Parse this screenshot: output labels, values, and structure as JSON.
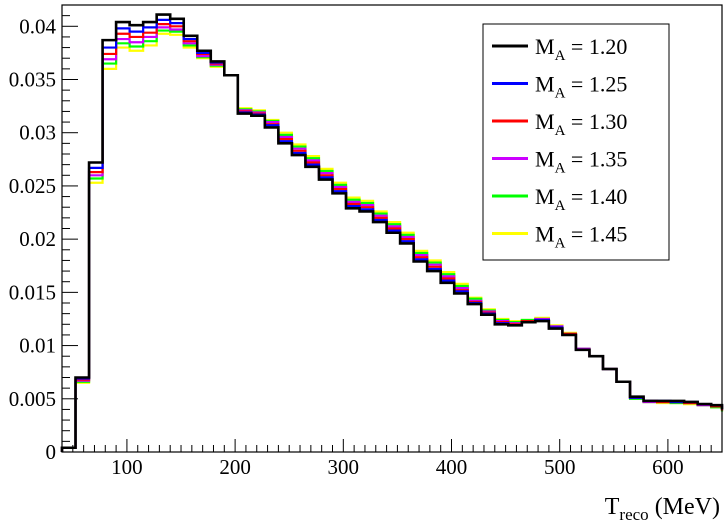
{
  "chart_data": {
    "type": "line",
    "style": "step-histogram",
    "title": "",
    "xlabel": "T",
    "xlabel_subscript": "reco",
    "xlabel_unit": " (MeV)",
    "ylabel": "",
    "xlim": [
      40,
      650
    ],
    "ylim": [
      0,
      0.042
    ],
    "x_ticks": [
      100,
      200,
      300,
      400,
      500,
      600
    ],
    "x_tick_labels": [
      "100",
      "200",
      "300",
      "400",
      "500",
      "600"
    ],
    "y_ticks": [
      0,
      0.005,
      0.01,
      0.015,
      0.02,
      0.025,
      0.03,
      0.035,
      0.04
    ],
    "y_tick_labels": [
      "0",
      "0.005",
      "0.01",
      "0.015",
      "0.02",
      "0.025",
      "0.03",
      "0.035",
      "0.04"
    ],
    "grid": false,
    "legend_position": "top-right",
    "bin_edges": [
      40,
      52.5,
      65,
      77.5,
      90,
      102.5,
      115,
      127.5,
      140,
      152.5,
      165,
      177.5,
      190,
      202.5,
      215,
      227.5,
      240,
      252.5,
      265,
      277.5,
      290,
      302.5,
      315,
      327.5,
      340,
      352.5,
      365,
      377.5,
      390,
      402.5,
      415,
      427.5,
      440,
      452.5,
      465,
      477.5,
      490,
      502.5,
      515,
      527.5,
      540,
      552.5,
      565,
      577.5,
      590,
      602.5,
      615,
      627.5,
      640,
      650
    ],
    "series": [
      {
        "label_main": "M",
        "label_sub": "A",
        "label_value": " = 1.20",
        "color": "#000000",
        "values": [
          0.0004,
          0.007,
          0.0272,
          0.0387,
          0.0404,
          0.0401,
          0.0404,
          0.0411,
          0.0407,
          0.0391,
          0.0377,
          0.0367,
          0.0354,
          0.0318,
          0.0316,
          0.0305,
          0.029,
          0.0279,
          0.0268,
          0.0256,
          0.0243,
          0.0229,
          0.0226,
          0.0216,
          0.0206,
          0.0196,
          0.0179,
          0.017,
          0.0159,
          0.0149,
          0.0139,
          0.0129,
          0.012,
          0.0119,
          0.0122,
          0.0123,
          0.0116,
          0.011,
          0.0096,
          0.009,
          0.0078,
          0.0066,
          0.0052,
          0.0048,
          0.0048,
          0.0048,
          0.0047,
          0.0045,
          0.0044,
          0.004
        ]
      },
      {
        "label_main": "M",
        "label_sub": "A",
        "label_value": " = 1.25",
        "color": "#0000ff",
        "values": [
          0.0004,
          0.0069,
          0.0267,
          0.038,
          0.0398,
          0.0395,
          0.0399,
          0.0406,
          0.0403,
          0.0388,
          0.0375,
          0.0366,
          0.0354,
          0.0319,
          0.0317,
          0.0307,
          0.0292,
          0.0281,
          0.027,
          0.0258,
          0.0245,
          0.0231,
          0.0228,
          0.0218,
          0.0208,
          0.0198,
          0.0181,
          0.0172,
          0.0161,
          0.0151,
          0.014,
          0.013,
          0.0121,
          0.0119,
          0.0122,
          0.0124,
          0.0117,
          0.011,
          0.0096,
          0.009,
          0.0078,
          0.0066,
          0.0051,
          0.0048,
          0.0048,
          0.0047,
          0.0047,
          0.0045,
          0.0044,
          0.004
        ]
      },
      {
        "label_main": "M",
        "label_sub": "A",
        "label_value": " = 1.30",
        "color": "#ff0000",
        "values": [
          0.0004,
          0.0068,
          0.0263,
          0.0374,
          0.0393,
          0.039,
          0.0394,
          0.0402,
          0.04,
          0.0386,
          0.0374,
          0.0365,
          0.0354,
          0.032,
          0.0318,
          0.0308,
          0.0294,
          0.0283,
          0.0272,
          0.026,
          0.0247,
          0.0233,
          0.023,
          0.022,
          0.021,
          0.02,
          0.0183,
          0.0174,
          0.0163,
          0.0152,
          0.0141,
          0.0131,
          0.0122,
          0.012,
          0.0123,
          0.0124,
          0.0117,
          0.0111,
          0.0096,
          0.009,
          0.0078,
          0.0066,
          0.0051,
          0.0048,
          0.0047,
          0.0047,
          0.0046,
          0.0045,
          0.0043,
          0.0039
        ]
      },
      {
        "label_main": "M",
        "label_sub": "A",
        "label_value": " = 1.35",
        "color": "#cc00ff",
        "values": [
          0.0004,
          0.0067,
          0.026,
          0.0369,
          0.0388,
          0.0385,
          0.039,
          0.0399,
          0.0397,
          0.0384,
          0.0372,
          0.0364,
          0.0354,
          0.0321,
          0.0319,
          0.031,
          0.0296,
          0.0285,
          0.0274,
          0.0262,
          0.0249,
          0.0235,
          0.0232,
          0.0222,
          0.0212,
          0.0202,
          0.0185,
          0.0176,
          0.0165,
          0.0154,
          0.0142,
          0.0132,
          0.0123,
          0.0121,
          0.0123,
          0.0125,
          0.0118,
          0.0111,
          0.0097,
          0.009,
          0.0078,
          0.0066,
          0.0051,
          0.0047,
          0.0047,
          0.0047,
          0.0046,
          0.0044,
          0.0043,
          0.0039
        ]
      },
      {
        "label_main": "M",
        "label_sub": "A",
        "label_value": " = 1.40",
        "color": "#00ff00",
        "values": [
          0.0004,
          0.0066,
          0.0257,
          0.0365,
          0.0384,
          0.0381,
          0.0386,
          0.0396,
          0.0395,
          0.0382,
          0.0371,
          0.0363,
          0.0354,
          0.0322,
          0.032,
          0.0311,
          0.0298,
          0.0287,
          0.0276,
          0.0264,
          0.0251,
          0.0237,
          0.0234,
          0.0224,
          0.0214,
          0.0204,
          0.0187,
          0.0178,
          0.0167,
          0.0156,
          0.0144,
          0.0133,
          0.0124,
          0.0122,
          0.0124,
          0.0125,
          0.0118,
          0.0111,
          0.0097,
          0.009,
          0.0078,
          0.0066,
          0.005,
          0.0047,
          0.0047,
          0.0046,
          0.0046,
          0.0044,
          0.0042,
          0.0038
        ]
      },
      {
        "label_main": "M",
        "label_sub": "A",
        "label_value": " = 1.45",
        "color": "#ffff00",
        "values": [
          0.0004,
          0.0065,
          0.0253,
          0.036,
          0.038,
          0.0377,
          0.0382,
          0.0393,
          0.0392,
          0.038,
          0.037,
          0.0362,
          0.0354,
          0.0323,
          0.0321,
          0.0312,
          0.03,
          0.0289,
          0.0278,
          0.0266,
          0.0253,
          0.0239,
          0.0236,
          0.0226,
          0.0216,
          0.0206,
          0.0189,
          0.018,
          0.0169,
          0.0158,
          0.0145,
          0.0134,
          0.0125,
          0.0123,
          0.0124,
          0.0126,
          0.0119,
          0.0112,
          0.0097,
          0.009,
          0.0078,
          0.0066,
          0.005,
          0.0047,
          0.0046,
          0.0046,
          0.0045,
          0.0044,
          0.0042,
          0.0038
        ]
      }
    ]
  }
}
